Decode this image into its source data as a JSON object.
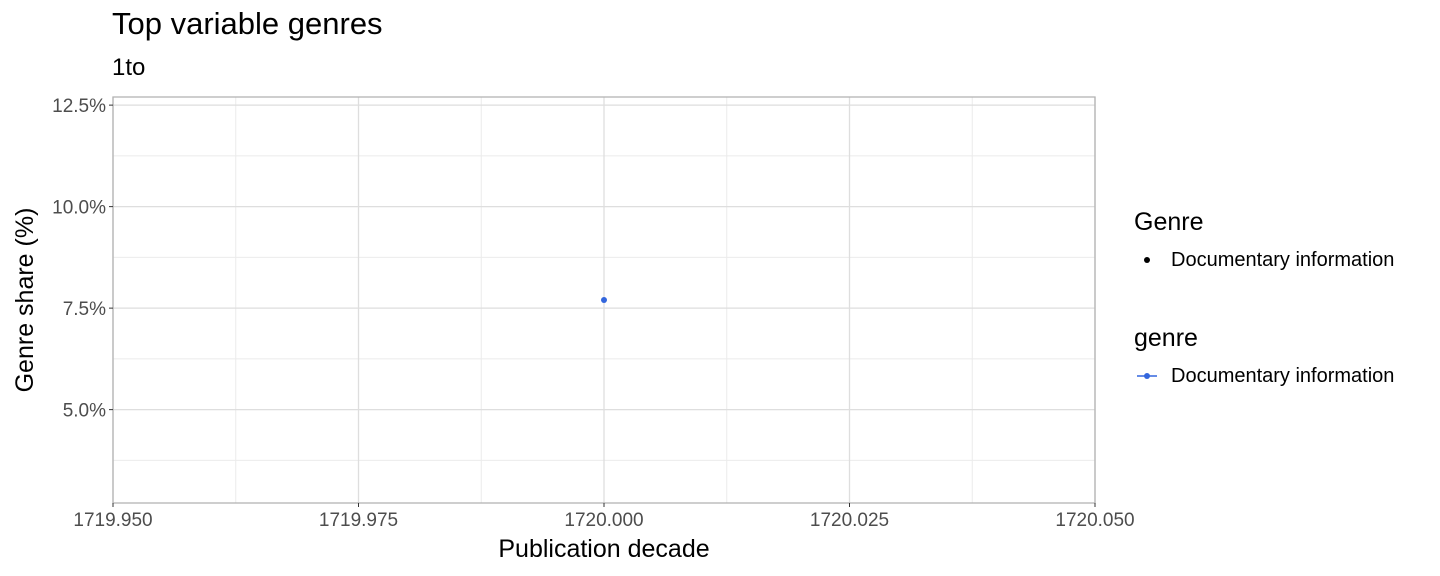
{
  "chart_data": {
    "type": "scatter",
    "title": "Top variable genres",
    "subtitle": "1to",
    "xlabel": "Publication decade",
    "ylabel": "Genre share (%)",
    "xlim": [
      1719.95,
      1720.05
    ],
    "ylim": [
      2.7,
      12.7
    ],
    "x_ticks": [
      1719.95,
      1719.975,
      1720.0,
      1720.025,
      1720.05
    ],
    "x_tick_labels": [
      "1719.950",
      "1719.975",
      "1720.000",
      "1720.025",
      "1720.050"
    ],
    "y_ticks": [
      5.0,
      7.5,
      10.0,
      12.5
    ],
    "y_tick_labels": [
      "5.0%",
      "7.5%",
      "10.0%",
      "12.5%"
    ],
    "grid": true,
    "legend_position": "right",
    "series": [
      {
        "name": "Documentary information",
        "color": "#3366dd",
        "points": [
          {
            "x": 1720.0,
            "y": 7.7
          }
        ]
      }
    ],
    "legends": [
      {
        "title": "Genre",
        "items": [
          "Documentary information"
        ],
        "key": "point"
      },
      {
        "title": "genre",
        "items": [
          "Documentary information"
        ],
        "key": "line-point"
      }
    ]
  }
}
